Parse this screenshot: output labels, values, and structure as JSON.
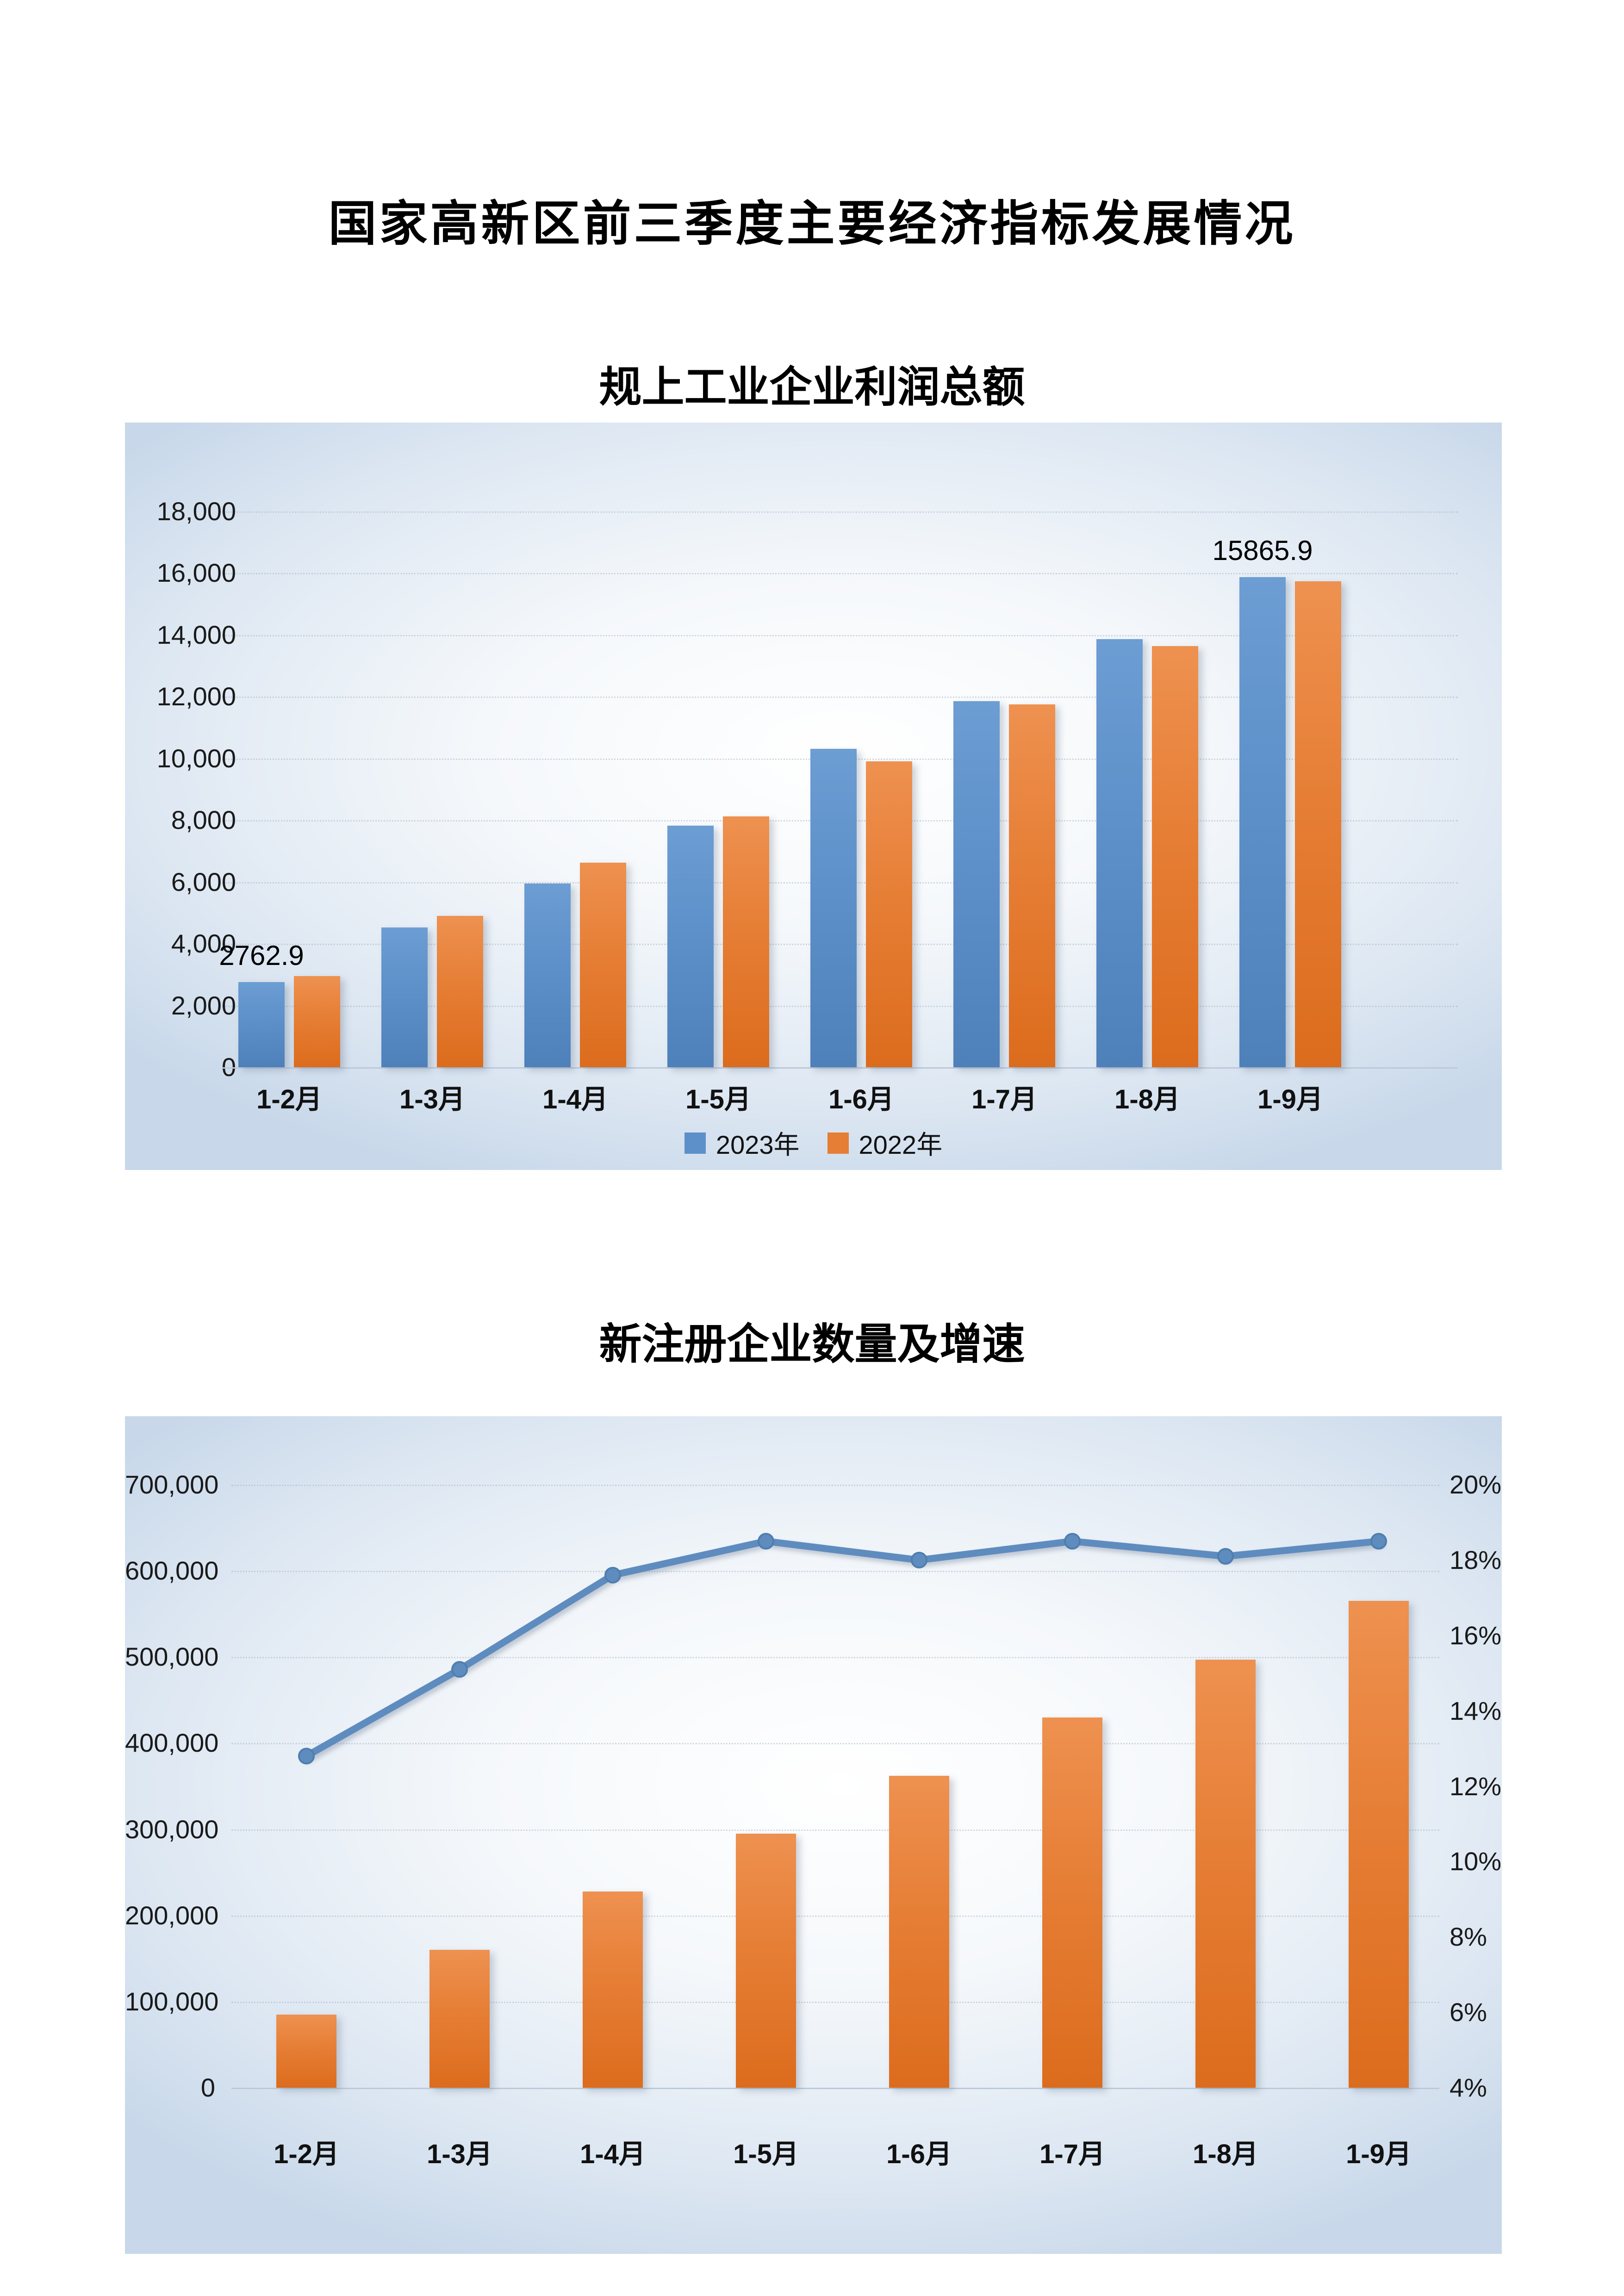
{
  "page": {
    "main_title": "国家高新区前三季度主要经济指标发展情况"
  },
  "colors": {
    "bar_blue": "#5d90c9",
    "bar_orange": "#e67e35",
    "trend_line": "#5f8cbf",
    "axis_text": "#1a1a1a",
    "panel_edge_blue": "#c8d8ea"
  },
  "chart_data": [
    {
      "type": "bar",
      "title": "规上工业企业利润总额",
      "categories": [
        "1-2月",
        "1-3月",
        "1-4月",
        "1-5月",
        "1-6月",
        "1-7月",
        "1-8月",
        "1-9月"
      ],
      "series": [
        {
          "name": "2023年",
          "color": "#5d90c9",
          "values": [
            2762.9,
            4520,
            5950,
            7820,
            10300,
            11850,
            13860,
            15865.9
          ]
        },
        {
          "name": "2022年",
          "color": "#e67e35",
          "values": [
            2950,
            4900,
            6620,
            8120,
            9900,
            11750,
            13630,
            15730
          ]
        }
      ],
      "point_labels": [
        {
          "series": 0,
          "index": 0,
          "text": "2762.9"
        },
        {
          "series": 0,
          "index": 7,
          "text": "15865.9"
        }
      ],
      "ylim": [
        0,
        18000
      ],
      "ytick_step": 2000,
      "ytick_labels": [
        "0",
        "2,000",
        "4,000",
        "6,000",
        "8,000",
        "10,000",
        "12,000",
        "14,000",
        "16,000",
        "18,000"
      ],
      "legend_position": "bottom",
      "grid": true
    },
    {
      "type": "bar+line",
      "title": "新注册企业数量及增速",
      "categories": [
        "1-2月",
        "1-3月",
        "1-4月",
        "1-5月",
        "1-6月",
        "1-7月",
        "1-8月",
        "1-9月"
      ],
      "bar_series": {
        "color": "#e67e35",
        "axis": "left",
        "values": [
          85000,
          160000,
          228000,
          295000,
          362000,
          430000,
          497000,
          565000
        ]
      },
      "line_series": {
        "color": "#5f8cbf",
        "axis": "right",
        "values": [
          12.8,
          15.1,
          17.6,
          18.5,
          18.0,
          18.5,
          18.1,
          18.5
        ]
      },
      "left_ylim": [
        0,
        700000
      ],
      "left_tick_step": 100000,
      "left_tick_labels": [
        "0",
        "100,000",
        "200,000",
        "300,000",
        "400,000",
        "500,000",
        "600,000",
        "700,000"
      ],
      "right_ylim": [
        4,
        20
      ],
      "right_tick_step": 2,
      "right_tick_labels": [
        "4%",
        "6%",
        "8%",
        "10%",
        "12%",
        "14%",
        "16%",
        "18%",
        "20%"
      ],
      "grid": true,
      "legend_position": "none"
    }
  ]
}
